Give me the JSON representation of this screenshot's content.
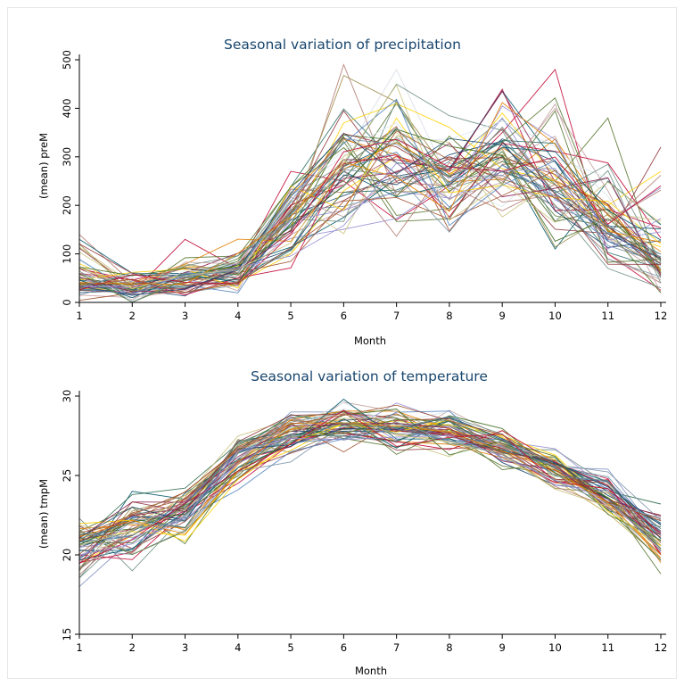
{
  "chart_data": [
    {
      "type": "line",
      "title": "Seasonal variation of precipitation",
      "xlabel": "Month",
      "ylabel": "(mean) preM",
      "x": [
        1,
        2,
        3,
        4,
        5,
        6,
        7,
        8,
        9,
        10,
        11,
        12
      ],
      "xticks": [
        "1",
        "2",
        "3",
        "4",
        "5",
        "6",
        "7",
        "8",
        "9",
        "10",
        "11",
        "12"
      ],
      "yticks": [
        "0",
        "100",
        "200",
        "300",
        "400",
        "500"
      ],
      "xlim": [
        1,
        12
      ],
      "ylim": [
        0,
        500
      ],
      "grid": false,
      "legend": "none",
      "series_count": 60,
      "representative_series": [
        {
          "values": [
            20,
            25,
            30,
            60,
            180,
            220,
            260,
            280,
            270,
            230,
            160,
            60
          ],
          "color": "#1a476f"
        },
        {
          "values": [
            140,
            40,
            35,
            55,
            150,
            490,
            220,
            300,
            250,
            200,
            100,
            40
          ],
          "color": "#b07a6f"
        },
        {
          "values": [
            30,
            20,
            130,
            70,
            270,
            250,
            170,
            240,
            350,
            480,
            100,
            25
          ],
          "color": "#c10534"
        },
        {
          "values": [
            60,
            50,
            60,
            80,
            230,
            300,
            480,
            250,
            300,
            220,
            130,
            80
          ],
          "color": "#d7dce3"
        },
        {
          "values": [
            40,
            30,
            50,
            90,
            200,
            250,
            410,
            240,
            290,
            250,
            380,
            60
          ],
          "color": "#55752f"
        },
        {
          "values": [
            80,
            30,
            20,
            40,
            100,
            230,
            300,
            260,
            390,
            260,
            200,
            270
          ],
          "color": "#ffd200"
        },
        {
          "values": [
            25,
            20,
            40,
            70,
            170,
            210,
            270,
            300,
            270,
            250,
            130,
            320
          ],
          "color": "#90353b"
        },
        {
          "values": [
            130,
            60,
            60,
            50,
            110,
            280,
            330,
            260,
            300,
            110,
            250,
            160
          ],
          "color": "#00576a"
        },
        {
          "values": [
            15,
            10,
            25,
            50,
            140,
            190,
            250,
            280,
            260,
            400,
            230,
            20
          ],
          "color": "#c79ba0"
        },
        {
          "values": [
            50,
            35,
            45,
            60,
            190,
            260,
            340,
            270,
            330,
            200,
            70,
            30
          ],
          "color": "#6e8e84"
        }
      ]
    },
    {
      "type": "line",
      "title": "Seasonal variation of temperature",
      "xlabel": "Month",
      "ylabel": "(mean) tmpM",
      "x": [
        1,
        2,
        3,
        4,
        5,
        6,
        7,
        8,
        9,
        10,
        11,
        12
      ],
      "xticks": [
        "1",
        "2",
        "3",
        "4",
        "5",
        "6",
        "7",
        "8",
        "9",
        "10",
        "11",
        "12"
      ],
      "yticks": [
        "15",
        "20",
        "25",
        "30"
      ],
      "xlim": [
        1,
        12
      ],
      "ylim": [
        15,
        30
      ],
      "grid": false,
      "legend": "none",
      "series_count": 60,
      "representative_series": [
        {
          "values": [
            20.5,
            21.5,
            23.0,
            25.8,
            27.5,
            28.0,
            27.9,
            27.6,
            26.8,
            25.5,
            23.5,
            21.5
          ],
          "color": "#1a476f"
        },
        {
          "values": [
            19.0,
            24.0,
            23.5,
            26.5,
            27.8,
            28.3,
            28.0,
            27.7,
            26.9,
            25.8,
            24.0,
            22.0
          ],
          "color": "#00576a"
        },
        {
          "values": [
            22.3,
            19.0,
            22.5,
            26.0,
            27.2,
            27.8,
            27.8,
            27.5,
            26.7,
            25.5,
            23.0,
            20.0
          ],
          "color": "#6e8e84"
        },
        {
          "values": [
            21.5,
            23.0,
            20.7,
            25.5,
            27.5,
            28.2,
            28.0,
            27.7,
            26.9,
            25.8,
            23.5,
            18.8
          ],
          "color": "#55752f"
        },
        {
          "values": [
            18.0,
            21.0,
            22.5,
            25.8,
            29.0,
            29.0,
            28.2,
            27.8,
            27.0,
            25.5,
            25.4,
            21.0
          ],
          "color": "#7f8dbf"
        },
        {
          "values": [
            20.0,
            19.7,
            22.7,
            24.5,
            27.0,
            28.0,
            27.8,
            27.6,
            26.7,
            25.7,
            24.8,
            20.0
          ],
          "color": "#c10534"
        },
        {
          "values": [
            19.5,
            21.2,
            23.2,
            25.9,
            27.9,
            28.3,
            28.1,
            27.8,
            26.8,
            25.4,
            23.6,
            21.5
          ],
          "color": "#ffd200"
        },
        {
          "values": [
            21.0,
            22.0,
            23.5,
            26.8,
            28.1,
            28.1,
            27.6,
            27.2,
            26.5,
            24.7,
            22.6,
            19.8
          ],
          "color": "#c4a84f"
        },
        {
          "values": [
            20.8,
            23.8,
            24.2,
            27.0,
            28.0,
            27.9,
            28.0,
            28.2,
            27.0,
            25.9,
            24.0,
            23.2
          ],
          "color": "#2f6a4f"
        },
        {
          "values": [
            21.8,
            20.4,
            22.1,
            25.2,
            26.4,
            27.5,
            27.9,
            27.9,
            26.7,
            25.6,
            23.3,
            22.5
          ],
          "color": "#90353b"
        }
      ]
    }
  ]
}
